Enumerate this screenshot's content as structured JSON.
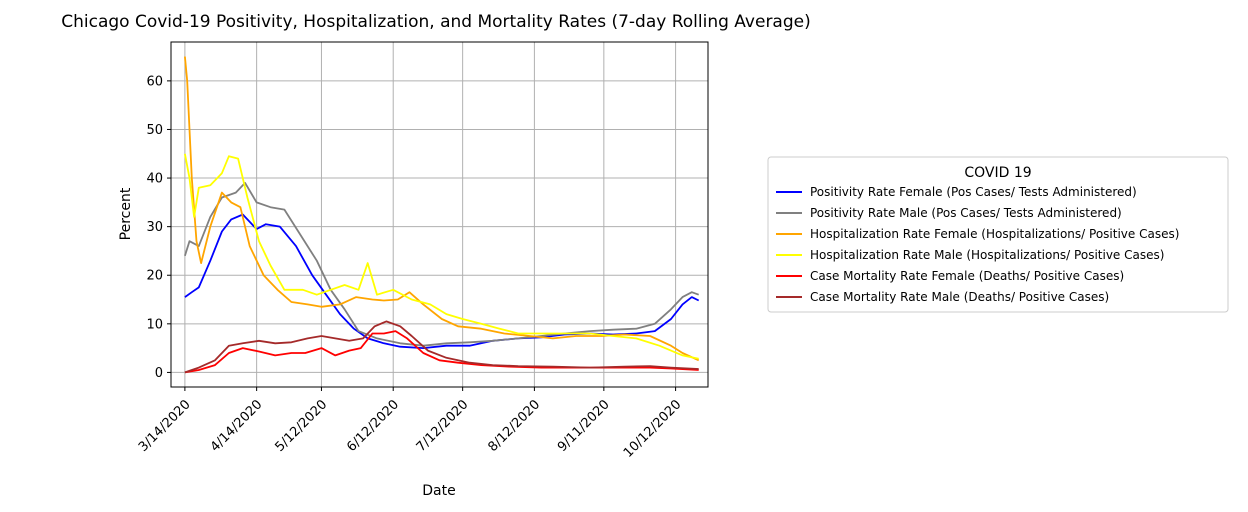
{
  "chart_data": {
    "type": "line",
    "title": "Chicago Covid-19 Positivity, Hospitalization, and Mortality Rates (7-day Rolling Average)",
    "xlabel": "Date",
    "ylabel": "Percent",
    "xlim": [
      "2020-03-08",
      "2020-10-26"
    ],
    "ylim": [
      -3,
      68
    ],
    "x_ticks": [
      "2020-03-14",
      "2020-04-14",
      "2020-05-12",
      "2020-06-12",
      "2020-07-12",
      "2020-08-12",
      "2020-09-11",
      "2020-10-12"
    ],
    "x_tick_labels": [
      "3/14/2020",
      "4/14/2020",
      "5/12/2020",
      "6/12/2020",
      "7/12/2020",
      "8/12/2020",
      "9/11/2020",
      "10/12/2020"
    ],
    "y_ticks": [
      0,
      10,
      20,
      30,
      40,
      50,
      60
    ],
    "grid": true,
    "legend": {
      "title": "COVID 19",
      "placement": "right"
    },
    "series": [
      {
        "name": "Positivity Rate Female (Pos Cases/ Tests Administered)",
        "color": "#0000ff",
        "points": [
          [
            "2020-03-14",
            15.5
          ],
          [
            "2020-03-17",
            16.5
          ],
          [
            "2020-03-20",
            17.5
          ],
          [
            "2020-03-25",
            23
          ],
          [
            "2020-03-30",
            29
          ],
          [
            "2020-04-03",
            31.5
          ],
          [
            "2020-04-08",
            32.5
          ],
          [
            "2020-04-14",
            29.5
          ],
          [
            "2020-04-18",
            30.5
          ],
          [
            "2020-04-24",
            30
          ],
          [
            "2020-05-01",
            26
          ],
          [
            "2020-05-08",
            20
          ],
          [
            "2020-05-14",
            16
          ],
          [
            "2020-05-20",
            12
          ],
          [
            "2020-05-26",
            9
          ],
          [
            "2020-06-01",
            7
          ],
          [
            "2020-06-08",
            6
          ],
          [
            "2020-06-15",
            5.3
          ],
          [
            "2020-06-25",
            5
          ],
          [
            "2020-07-05",
            5.5
          ],
          [
            "2020-07-15",
            5.5
          ],
          [
            "2020-07-25",
            6.5
          ],
          [
            "2020-08-05",
            7
          ],
          [
            "2020-08-15",
            7.2
          ],
          [
            "2020-08-25",
            7.8
          ],
          [
            "2020-09-05",
            8
          ],
          [
            "2020-09-15",
            7.8
          ],
          [
            "2020-09-25",
            8
          ],
          [
            "2020-10-03",
            8.5
          ],
          [
            "2020-10-10",
            11
          ],
          [
            "2020-10-15",
            14
          ],
          [
            "2020-10-19",
            15.5
          ],
          [
            "2020-10-22",
            14.8
          ]
        ]
      },
      {
        "name": "Positivity Rate Male (Pos Cases/ Tests Administered)",
        "color": "#808080",
        "points": [
          [
            "2020-03-14",
            24
          ],
          [
            "2020-03-16",
            27
          ],
          [
            "2020-03-20",
            26
          ],
          [
            "2020-03-25",
            32
          ],
          [
            "2020-03-30",
            36
          ],
          [
            "2020-04-05",
            37
          ],
          [
            "2020-04-09",
            39
          ],
          [
            "2020-04-14",
            35
          ],
          [
            "2020-04-20",
            34
          ],
          [
            "2020-04-26",
            33.5
          ],
          [
            "2020-05-02",
            29
          ],
          [
            "2020-05-10",
            23
          ],
          [
            "2020-05-16",
            17
          ],
          [
            "2020-05-22",
            13
          ],
          [
            "2020-05-28",
            8.5
          ],
          [
            "2020-06-05",
            7
          ],
          [
            "2020-06-15",
            6
          ],
          [
            "2020-06-25",
            5.5
          ],
          [
            "2020-07-05",
            6
          ],
          [
            "2020-07-15",
            6.2
          ],
          [
            "2020-07-25",
            6.5
          ],
          [
            "2020-08-05",
            7
          ],
          [
            "2020-08-15",
            7.5
          ],
          [
            "2020-08-25",
            8
          ],
          [
            "2020-09-05",
            8.5
          ],
          [
            "2020-09-15",
            8.8
          ],
          [
            "2020-09-25",
            9
          ],
          [
            "2020-10-03",
            10
          ],
          [
            "2020-10-10",
            13
          ],
          [
            "2020-10-15",
            15.5
          ],
          [
            "2020-10-19",
            16.5
          ],
          [
            "2020-10-22",
            16
          ]
        ]
      },
      {
        "name": "Hospitalization Rate Female (Hospitalizations/ Positive Cases)",
        "color": "#ffa500",
        "points": [
          [
            "2020-03-14",
            65
          ],
          [
            "2020-03-15",
            60
          ],
          [
            "2020-03-17",
            40
          ],
          [
            "2020-03-19",
            27
          ],
          [
            "2020-03-21",
            22.5
          ],
          [
            "2020-03-25",
            30
          ],
          [
            "2020-03-30",
            37
          ],
          [
            "2020-04-03",
            35
          ],
          [
            "2020-04-07",
            34
          ],
          [
            "2020-04-11",
            26
          ],
          [
            "2020-04-17",
            20
          ],
          [
            "2020-04-23",
            17
          ],
          [
            "2020-04-29",
            14.5
          ],
          [
            "2020-05-06",
            14
          ],
          [
            "2020-05-12",
            13.5
          ],
          [
            "2020-05-20",
            14
          ],
          [
            "2020-05-27",
            15.5
          ],
          [
            "2020-06-03",
            15
          ],
          [
            "2020-06-08",
            14.8
          ],
          [
            "2020-06-14",
            15
          ],
          [
            "2020-06-19",
            16.5
          ],
          [
            "2020-06-25",
            14
          ],
          [
            "2020-07-03",
            11
          ],
          [
            "2020-07-10",
            9.5
          ],
          [
            "2020-07-20",
            9
          ],
          [
            "2020-07-30",
            8
          ],
          [
            "2020-08-10",
            7.5
          ],
          [
            "2020-08-20",
            7
          ],
          [
            "2020-08-30",
            7.5
          ],
          [
            "2020-09-10",
            7.5
          ],
          [
            "2020-09-20",
            7.8
          ],
          [
            "2020-10-01",
            7.5
          ],
          [
            "2020-10-10",
            5.5
          ],
          [
            "2020-10-15",
            4
          ],
          [
            "2020-10-22",
            2.5
          ]
        ]
      },
      {
        "name": "Hospitalization Rate Male (Hospitalizations/ Positive Cases)",
        "color": "#ffff00",
        "points": [
          [
            "2020-03-14",
            45
          ],
          [
            "2020-03-16",
            40
          ],
          [
            "2020-03-18",
            32
          ],
          [
            "2020-03-20",
            38
          ],
          [
            "2020-03-25",
            38.5
          ],
          [
            "2020-03-30",
            41
          ],
          [
            "2020-04-02",
            44.5
          ],
          [
            "2020-04-06",
            44
          ],
          [
            "2020-04-10",
            36
          ],
          [
            "2020-04-15",
            27
          ],
          [
            "2020-04-20",
            22
          ],
          [
            "2020-04-26",
            17
          ],
          [
            "2020-05-04",
            17
          ],
          [
            "2020-05-10",
            16
          ],
          [
            "2020-05-16",
            17
          ],
          [
            "2020-05-22",
            18
          ],
          [
            "2020-05-28",
            17
          ],
          [
            "2020-06-01",
            22.5
          ],
          [
            "2020-06-05",
            16
          ],
          [
            "2020-06-12",
            17
          ],
          [
            "2020-06-20",
            15
          ],
          [
            "2020-06-28",
            14
          ],
          [
            "2020-07-05",
            12
          ],
          [
            "2020-07-12",
            11
          ],
          [
            "2020-07-20",
            10
          ],
          [
            "2020-07-28",
            9
          ],
          [
            "2020-08-05",
            8
          ],
          [
            "2020-08-15",
            8
          ],
          [
            "2020-08-25",
            8
          ],
          [
            "2020-09-05",
            8
          ],
          [
            "2020-09-15",
            7.5
          ],
          [
            "2020-09-25",
            7
          ],
          [
            "2020-10-05",
            5.5
          ],
          [
            "2020-10-15",
            3.5
          ],
          [
            "2020-10-22",
            2.8
          ]
        ]
      },
      {
        "name": "Case Mortality Rate Female (Deaths/ Positive Cases)",
        "color": "#ff0000",
        "points": [
          [
            "2020-03-14",
            0
          ],
          [
            "2020-03-20",
            0.5
          ],
          [
            "2020-03-27",
            1.5
          ],
          [
            "2020-04-02",
            4
          ],
          [
            "2020-04-08",
            5
          ],
          [
            "2020-04-15",
            4.3
          ],
          [
            "2020-04-22",
            3.5
          ],
          [
            "2020-04-29",
            4
          ],
          [
            "2020-05-05",
            4
          ],
          [
            "2020-05-12",
            5
          ],
          [
            "2020-05-18",
            3.5
          ],
          [
            "2020-05-24",
            4.5
          ],
          [
            "2020-05-29",
            5
          ],
          [
            "2020-06-03",
            8
          ],
          [
            "2020-06-08",
            8
          ],
          [
            "2020-06-13",
            8.5
          ],
          [
            "2020-06-18",
            7
          ],
          [
            "2020-06-25",
            4
          ],
          [
            "2020-07-02",
            2.5
          ],
          [
            "2020-07-10",
            2
          ],
          [
            "2020-07-20",
            1.5
          ],
          [
            "2020-08-01",
            1.2
          ],
          [
            "2020-08-15",
            1
          ],
          [
            "2020-09-01",
            1
          ],
          [
            "2020-09-15",
            1
          ],
          [
            "2020-10-01",
            1
          ],
          [
            "2020-10-10",
            0.8
          ],
          [
            "2020-10-22",
            0.5
          ]
        ]
      },
      {
        "name": "Case Mortality Rate Male (Deaths/ Positive Cases)",
        "color": "#a52a2a",
        "points": [
          [
            "2020-03-14",
            0
          ],
          [
            "2020-03-20",
            1
          ],
          [
            "2020-03-27",
            2.5
          ],
          [
            "2020-04-02",
            5.5
          ],
          [
            "2020-04-08",
            6
          ],
          [
            "2020-04-15",
            6.5
          ],
          [
            "2020-04-22",
            6
          ],
          [
            "2020-04-29",
            6.2
          ],
          [
            "2020-05-06",
            7
          ],
          [
            "2020-05-12",
            7.5
          ],
          [
            "2020-05-18",
            7
          ],
          [
            "2020-05-24",
            6.5
          ],
          [
            "2020-05-30",
            7
          ],
          [
            "2020-06-04",
            9.5
          ],
          [
            "2020-06-09",
            10.5
          ],
          [
            "2020-06-15",
            9.5
          ],
          [
            "2020-06-20",
            7.5
          ],
          [
            "2020-06-27",
            4.5
          ],
          [
            "2020-07-05",
            3
          ],
          [
            "2020-07-15",
            2
          ],
          [
            "2020-07-25",
            1.5
          ],
          [
            "2020-08-05",
            1.3
          ],
          [
            "2020-08-20",
            1.2
          ],
          [
            "2020-09-05",
            1
          ],
          [
            "2020-09-20",
            1.2
          ],
          [
            "2020-10-01",
            1.3
          ],
          [
            "2020-10-10",
            1
          ],
          [
            "2020-10-22",
            0.7
          ]
        ]
      }
    ]
  }
}
